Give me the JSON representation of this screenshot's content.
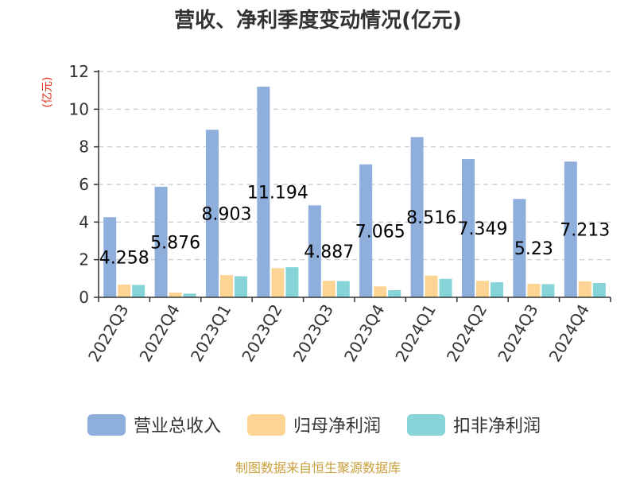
{
  "chart_data": {
    "type": "bar",
    "title": "营收、净利季度变动情况(亿元)",
    "ylabel": "(亿元)",
    "ylim": [
      0,
      12
    ],
    "yticks": [
      0,
      2,
      4,
      6,
      8,
      10,
      12
    ],
    "grid": true,
    "legend_position": "bottom",
    "categories": [
      "2022Q3",
      "2022Q4",
      "2023Q1",
      "2023Q2",
      "2023Q3",
      "2023Q4",
      "2024Q1",
      "2024Q2",
      "2024Q3",
      "2024Q4"
    ],
    "series": [
      {
        "name": "营业总收入",
        "color": "#8eaedb",
        "values": [
          4.258,
          5.876,
          8.903,
          11.194,
          4.887,
          7.065,
          8.516,
          7.349,
          5.23,
          7.213
        ],
        "labels": [
          "4.258",
          "5.876",
          "8.903",
          "11.194",
          "4.887",
          "7.065",
          "8.516",
          "7.349",
          "5.23",
          "7.213"
        ]
      },
      {
        "name": "归母净利润",
        "color": "#fdd494",
        "values": [
          0.68,
          0.25,
          1.18,
          1.55,
          0.88,
          0.58,
          1.15,
          0.88,
          0.72,
          0.85
        ]
      },
      {
        "name": "扣非净利润",
        "color": "#86d4d7",
        "values": [
          0.66,
          0.2,
          1.12,
          1.6,
          0.86,
          0.38,
          0.98,
          0.8,
          0.7,
          0.76
        ]
      }
    ]
  },
  "footer": {
    "source": "制图数据来自恒生聚源数据库"
  }
}
